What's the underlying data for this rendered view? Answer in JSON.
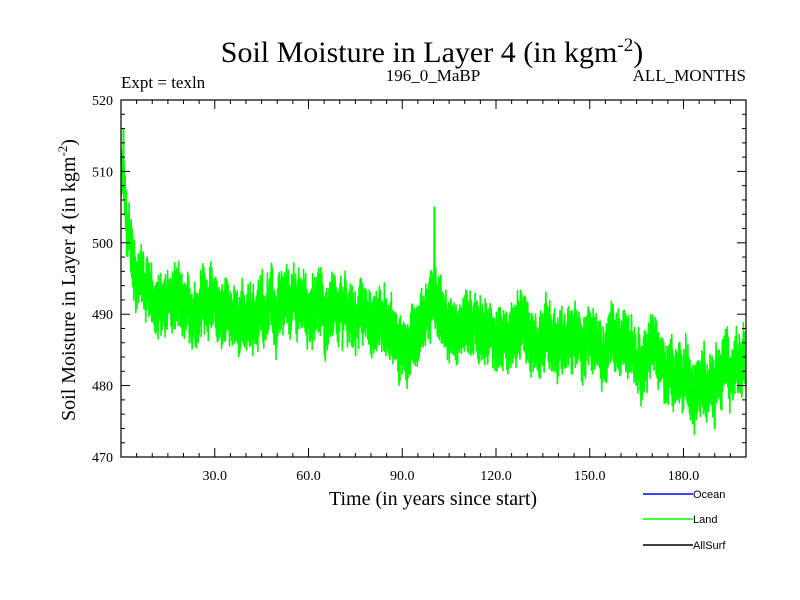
{
  "chart_data": {
    "type": "line",
    "title": "Soil Moisture in Layer 4 (in kgm",
    "title_sup": "-2",
    "title_close": ")",
    "subtitle_left": "Expt = texln",
    "subtitle_center": "196_0_MaBP",
    "subtitle_right": "ALL_MONTHS",
    "xlabel": "Time (in years since start)",
    "ylabel": "Soil Moisture in Layer 4 (in kgm",
    "ylabel_sup": "-2",
    "ylabel_close": ")",
    "xlim": [
      0,
      200
    ],
    "ylim": [
      470,
      520
    ],
    "xticks": [
      30,
      60,
      90,
      120,
      150,
      180
    ],
    "xtick_labels": [
      "30.0",
      "60.0",
      "90.0",
      "120.0",
      "150.0",
      "180.0"
    ],
    "yticks": [
      470,
      480,
      490,
      500,
      510,
      520
    ],
    "ytick_labels": [
      "470",
      "480",
      "490",
      "500",
      "510",
      "520"
    ],
    "grid": false,
    "legend_position": "bottom-right",
    "series": [
      {
        "name": "Ocean",
        "color": "#0000ff",
        "values": []
      },
      {
        "name": "Land",
        "color": "#00ff00",
        "trend": {
          "x": [
            0,
            1,
            2,
            4,
            6,
            10,
            15,
            20,
            30,
            40,
            50,
            55,
            60,
            70,
            80,
            88,
            92,
            96,
            100,
            102,
            105,
            110,
            120,
            130,
            140,
            150,
            160,
            170,
            175,
            180,
            185,
            190,
            195,
            200
          ],
          "y": [
            510,
            506,
            501,
            497,
            494,
            492,
            491,
            491.5,
            491,
            489.5,
            490.5,
            492,
            491,
            489.5,
            489,
            487.5,
            486,
            487,
            493,
            490,
            488,
            488,
            487.5,
            487,
            486.5,
            486.5,
            486,
            483.5,
            482,
            481,
            481,
            482,
            483,
            484
          ]
        },
        "amplitude": {
          "x": [
            0,
            5,
            10,
            200
          ],
          "y": [
            4,
            4.5,
            5,
            5
          ]
        },
        "extremes": {
          "max": {
            "x": 0.8,
            "y": 516
          },
          "peak_mid": {
            "x": 100.3,
            "y": 505
          },
          "min": {
            "x": 190,
            "y": 474
          }
        },
        "n_points": 2400
      },
      {
        "name": "AllSurf",
        "color": "#000000",
        "values": []
      }
    ]
  }
}
